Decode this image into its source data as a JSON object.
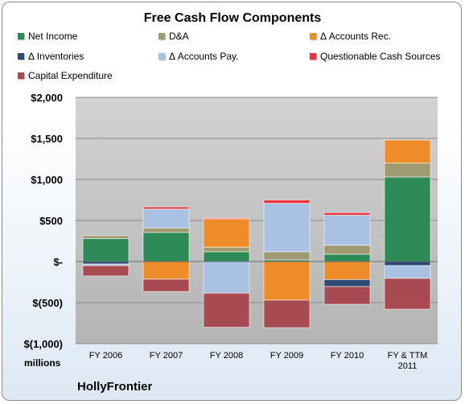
{
  "chart_data": {
    "type": "bar",
    "stacked": true,
    "title": "Free Cash Flow Components",
    "units_label": "millions",
    "company_label": "HollyFrontier",
    "categories": [
      "FY 2006",
      "FY 2007",
      "FY 2008",
      "FY 2009",
      "FY 2010",
      "FY & TTM 2011"
    ],
    "ylim": [
      -1000,
      2000
    ],
    "yticks": [
      {
        "value": 2000,
        "label": "$2,000"
      },
      {
        "value": 1500,
        "label": "$1,500"
      },
      {
        "value": 1000,
        "label": "$1,000"
      },
      {
        "value": 500,
        "label": "$500"
      },
      {
        "value": 0,
        "label": "$-"
      },
      {
        "value": -500,
        "label": "$(500)"
      },
      {
        "value": -1000,
        "label": "$(1,000)"
      }
    ],
    "grid": true,
    "legend_position": "top",
    "series": [
      {
        "name": "Net Income",
        "color": "#2e8b57",
        "values": [
          280,
          355,
          120,
          20,
          90,
          1030
        ]
      },
      {
        "name": "D&A",
        "color": "#a09a72",
        "values": [
          35,
          55,
          55,
          100,
          110,
          170
        ]
      },
      {
        "name": "Δ Accounts Rec.",
        "color": "#ef8c2a",
        "values": [
          0,
          -215,
          345,
          -470,
          -220,
          280
        ]
      },
      {
        "name": "Δ Inventories",
        "color": "#2e4a73",
        "values": [
          -30,
          0,
          0,
          0,
          -85,
          -50
        ]
      },
      {
        "name": "Δ Accounts Pay.",
        "color": "#a9c2e4",
        "values": [
          -20,
          230,
          -385,
          590,
          365,
          -155
        ]
      },
      {
        "name": "Questionable Cash Sources",
        "color": "#e8323c",
        "values": [
          0,
          25,
          10,
          40,
          30,
          0
        ]
      },
      {
        "name": "Capital Expenditure",
        "color": "#a84a52",
        "values": [
          -125,
          -150,
          -415,
          -335,
          -215,
          -375
        ]
      }
    ]
  }
}
